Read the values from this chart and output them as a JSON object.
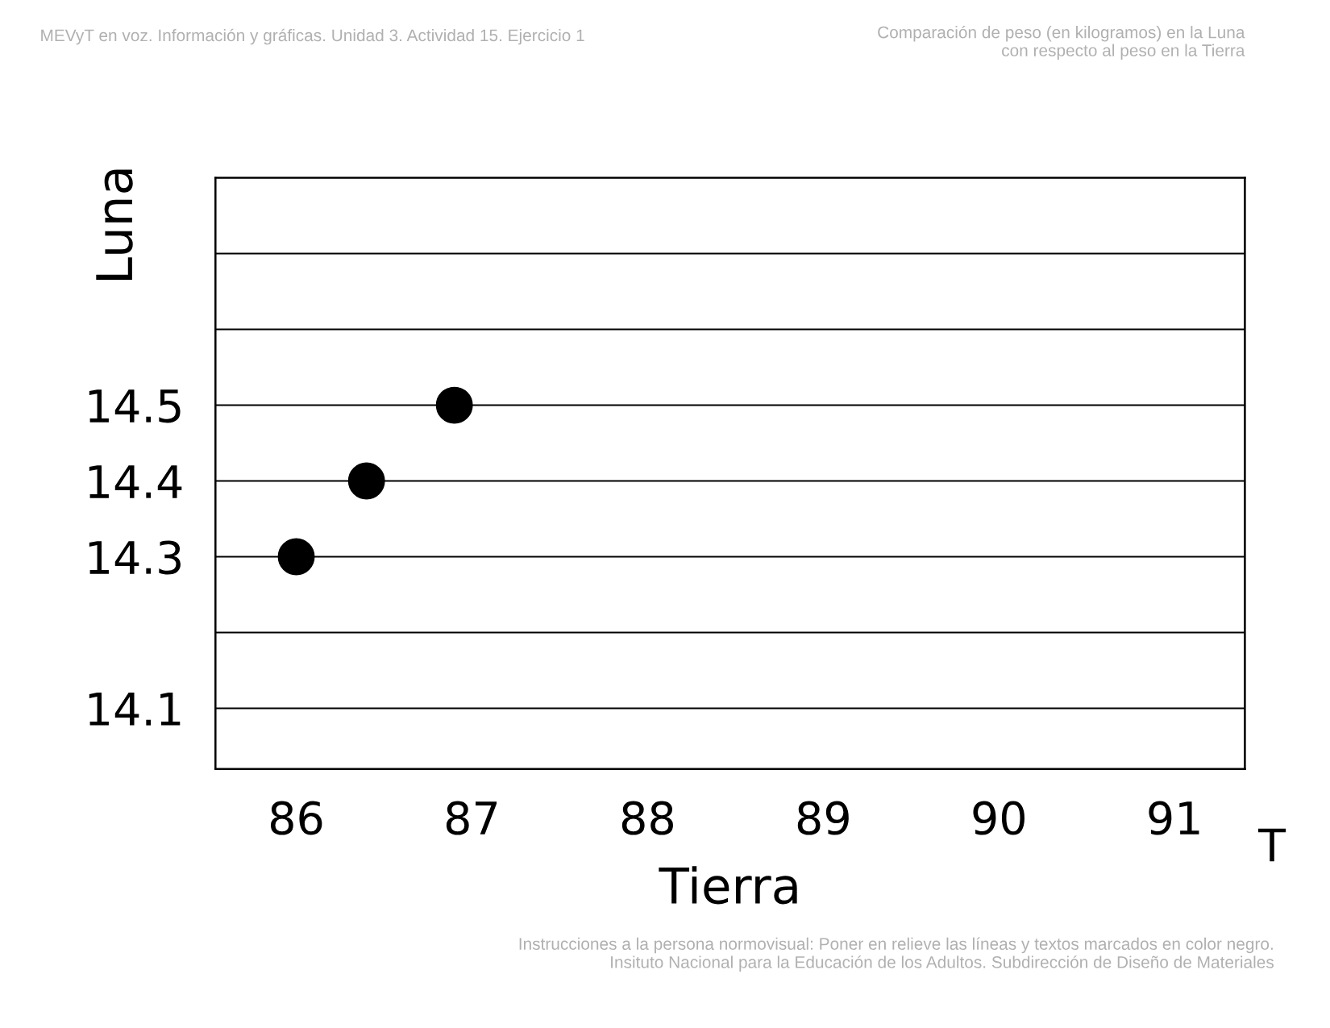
{
  "chart_data": {
    "type": "scatter",
    "title": "Comparación de peso (en kilogramos) en la Luna\ncon respecto al peso en la Tierra",
    "subtitle": "MEVyT en voz. Información y gráficas. Unidad 3. Actividad 15. Ejercicio 1",
    "xlabel": "Tierra",
    "ylabel": "Luna",
    "x": [
      86.0,
      86.4,
      86.9
    ],
    "series": [
      {
        "color": "#000000",
        "values": [
          14.3,
          14.4,
          14.5
        ]
      }
    ],
    "xlim": [
      85.54,
      91.4
    ],
    "xticks": [
      86,
      87,
      88,
      89,
      90,
      91
    ],
    "ylim": [
      14.02,
      14.8
    ],
    "yticks": [
      {
        "value": 14.1,
        "label": "14.1"
      },
      {
        "value": 14.2,
        "label": null
      },
      {
        "value": 14.3,
        "label": "14.3"
      },
      {
        "value": 14.4,
        "label": "14.4"
      },
      {
        "value": 14.5,
        "label": "14.5"
      },
      {
        "value": 14.6,
        "label": null
      },
      {
        "value": 14.7,
        "label": null
      }
    ],
    "grid": "y",
    "marker": "circle",
    "annotations": [
      "T",
      "Instrucciones a la persona normovisual: Poner en relieve las líneas y textos marcados en color negro.\nInsituto Nacional para la Educación de los Adultos. Subdirección de Diseño de Materiales"
    ]
  }
}
